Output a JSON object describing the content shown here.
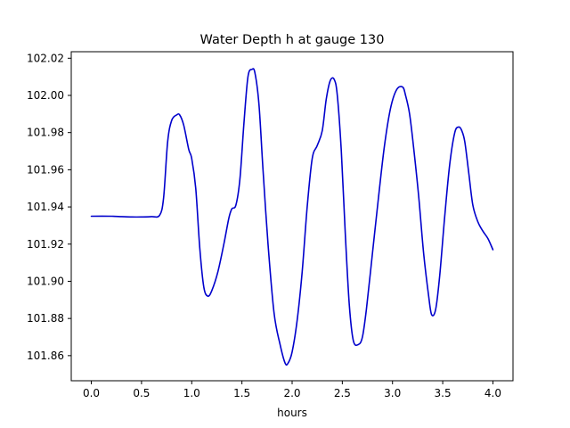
{
  "chart_data": {
    "type": "line",
    "title": "Water Depth h at gauge 130",
    "xlabel": "hours",
    "ylabel": "",
    "xlim": [
      -0.2,
      4.2
    ],
    "ylim": [
      101.8465,
      102.0235
    ],
    "xticks": [
      0.0,
      0.5,
      1.0,
      1.5,
      2.0,
      2.5,
      3.0,
      3.5,
      4.0
    ],
    "xtick_labels": [
      "0.0",
      "0.5",
      "1.0",
      "1.5",
      "2.0",
      "2.5",
      "3.0",
      "3.5",
      "4.0"
    ],
    "yticks": [
      101.86,
      101.88,
      101.9,
      101.92,
      101.94,
      101.96,
      101.98,
      102.0,
      102.02
    ],
    "ytick_labels": [
      "101.86",
      "101.88",
      "101.90",
      "101.92",
      "101.94",
      "101.96",
      "101.98",
      "102.00",
      "102.02"
    ],
    "grid": false,
    "series": [
      {
        "color": "#0000cc",
        "x": [
          0.0,
          0.2,
          0.3,
          0.4,
          0.5,
          0.6,
          0.68,
          0.72,
          0.76,
          0.8,
          0.85,
          0.88,
          0.92,
          0.97,
          1.0,
          1.04,
          1.08,
          1.12,
          1.16,
          1.2,
          1.26,
          1.32,
          1.37,
          1.4,
          1.44,
          1.48,
          1.52,
          1.56,
          1.6,
          1.63,
          1.67,
          1.71,
          1.76,
          1.82,
          1.88,
          1.93,
          1.96,
          2.0,
          2.05,
          2.1,
          2.15,
          2.2,
          2.25,
          2.3,
          2.34,
          2.38,
          2.42,
          2.45,
          2.49,
          2.53,
          2.57,
          2.61,
          2.66,
          2.7,
          2.74,
          2.8,
          2.86,
          2.92,
          2.98,
          3.04,
          3.1,
          3.13,
          3.17,
          3.21,
          3.26,
          3.31,
          3.36,
          3.39,
          3.43,
          3.47,
          3.52,
          3.57,
          3.62,
          3.66,
          3.69,
          3.72,
          3.76,
          3.8,
          3.85,
          3.9,
          3.95,
          4.0
        ],
        "y": [
          101.935,
          101.935,
          101.9348,
          101.9346,
          101.9346,
          101.9348,
          101.9355,
          101.945,
          101.975,
          101.9865,
          101.9895,
          101.9895,
          101.984,
          101.971,
          101.966,
          101.95,
          101.918,
          101.897,
          101.892,
          101.895,
          101.905,
          101.92,
          101.934,
          101.939,
          101.941,
          101.955,
          101.985,
          102.01,
          102.014,
          102.012,
          101.995,
          101.96,
          101.92,
          101.883,
          101.866,
          101.856,
          101.856,
          101.862,
          101.879,
          101.905,
          101.94,
          101.966,
          101.973,
          101.981,
          101.998,
          102.008,
          102.0085,
          102.0,
          101.97,
          101.925,
          101.887,
          101.868,
          101.866,
          101.87,
          101.885,
          101.915,
          101.945,
          101.973,
          101.993,
          102.003,
          102.0045,
          102.0,
          101.99,
          101.972,
          101.946,
          101.915,
          101.892,
          101.882,
          101.885,
          101.903,
          101.935,
          101.963,
          101.98,
          101.983,
          101.981,
          101.975,
          101.958,
          101.941,
          101.932,
          101.927,
          101.923,
          101.917
        ]
      }
    ]
  }
}
